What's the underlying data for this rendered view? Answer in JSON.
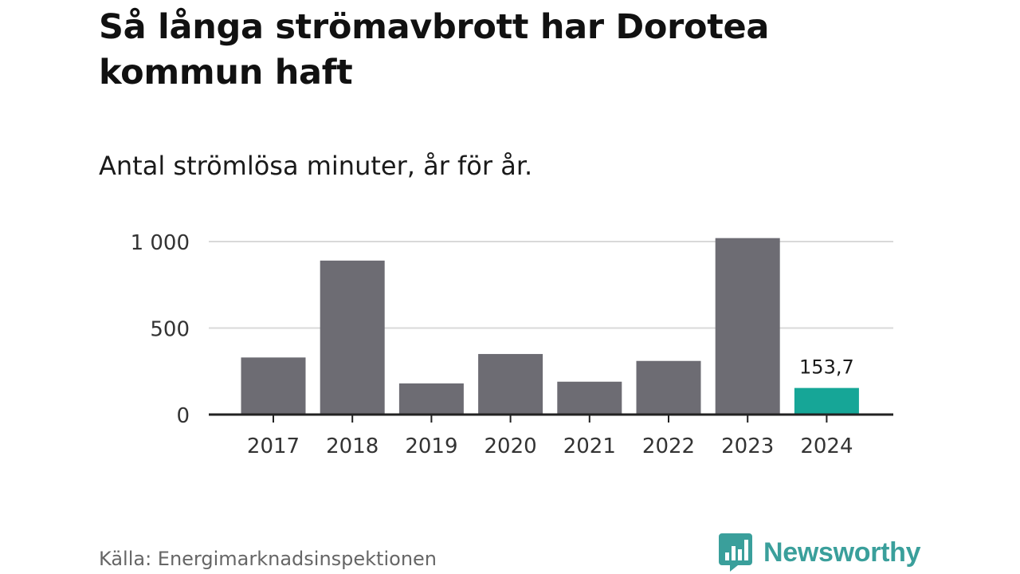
{
  "title": "Så långa strömavbrott har Dorotea kommun haft",
  "subtitle": "Antal strömlösa minuter, år för år.",
  "source": "Källa: Energimarknadsinspektionen",
  "brand": {
    "name": "Newsworthy",
    "icon": "bar-chart-speech-bubble-icon",
    "color": "#3a9f9b"
  },
  "colors": {
    "bar": "#6d6c73",
    "highlight": "#16a697",
    "grid": "#d9d9d9",
    "axis": "#222222"
  },
  "chart_data": {
    "type": "bar",
    "title": "Så långa strömavbrott har Dorotea kommun haft",
    "subtitle": "Antal strömlösa minuter, år för år.",
    "categories": [
      "2017",
      "2018",
      "2019",
      "2020",
      "2021",
      "2022",
      "2023",
      "2024"
    ],
    "values": [
      330,
      890,
      180,
      350,
      190,
      310,
      1020,
      153.7
    ],
    "highlight_index": 7,
    "data_labels": [
      {
        "index": 7,
        "text": "153,7"
      }
    ],
    "yticks": [
      {
        "value": 0,
        "label": "0"
      },
      {
        "value": 500,
        "label": "500"
      },
      {
        "value": 1000,
        "label": "1 000"
      }
    ],
    "ylim": [
      0,
      1020
    ],
    "xlabel": "",
    "ylabel": "",
    "grid": true,
    "legend": "none"
  }
}
